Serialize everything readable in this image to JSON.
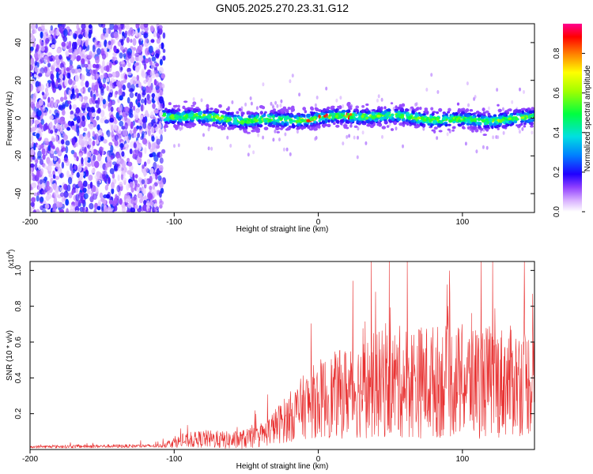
{
  "title": "GN05.2025.270.23.31.G12",
  "chart_data": [
    {
      "type": "heatmap",
      "title": "GN05.2025.270.23.31.G12",
      "xlabel": "Height of straight line (km)",
      "ylabel": "Frequency (Hz)",
      "xlim": [
        -200,
        150
      ],
      "ylim": [
        -50,
        50
      ],
      "xticks": [
        -200,
        -100,
        0,
        100
      ],
      "yticks": [
        -40,
        -20,
        0,
        20,
        40
      ],
      "noise_region_x": [
        -200,
        -107
      ],
      "signal_band_center_hz": 0,
      "signal_band_halfwidth_hz": 5,
      "peak_amplitude_x_range": [
        -15,
        30
      ],
      "colorbar": {
        "label": "Normalized spectral amplitude",
        "range": [
          0.0,
          0.95
        ],
        "ticks": [
          "0.0",
          "0.2",
          "0.4",
          "0.6",
          "0.8"
        ],
        "colors": [
          "#ffffff",
          "#c080ff",
          "#8000ff",
          "#0000ff",
          "#00c0ff",
          "#00ff80",
          "#80ff00",
          "#ffff00",
          "#ff8000",
          "#ff0000",
          "#ff0080"
        ]
      }
    },
    {
      "type": "line",
      "title": "",
      "xlabel": "Height of straight line (km)",
      "ylabel": "SNR (10 * v/v)",
      "yscale_label": "(x10",
      "yscale_exponent": "4",
      "xlim": [
        -200,
        150
      ],
      "ylim": [
        0,
        1.05
      ],
      "xticks": [
        -200,
        -100,
        0,
        100
      ],
      "yticks": [
        "0.2",
        "0.4",
        "0.6",
        "0.8",
        "1.0"
      ],
      "series": [
        {
          "name": "SNR",
          "color": "#e83030",
          "envelope_x": [
            -200,
            -160,
            -110,
            -100,
            -80,
            -60,
            -40,
            -30,
            -20,
            -10,
            0,
            20,
            40,
            60,
            80,
            100,
            120,
            150
          ],
          "envelope_mean": [
            0.015,
            0.018,
            0.02,
            0.04,
            0.06,
            0.05,
            0.07,
            0.13,
            0.18,
            0.24,
            0.28,
            0.32,
            0.36,
            0.38,
            0.38,
            0.38,
            0.38,
            0.38
          ],
          "envelope_spread": [
            0.008,
            0.01,
            0.01,
            0.03,
            0.05,
            0.05,
            0.06,
            0.1,
            0.14,
            0.18,
            0.22,
            0.26,
            0.3,
            0.32,
            0.32,
            0.32,
            0.32,
            0.3
          ]
        }
      ]
    }
  ]
}
